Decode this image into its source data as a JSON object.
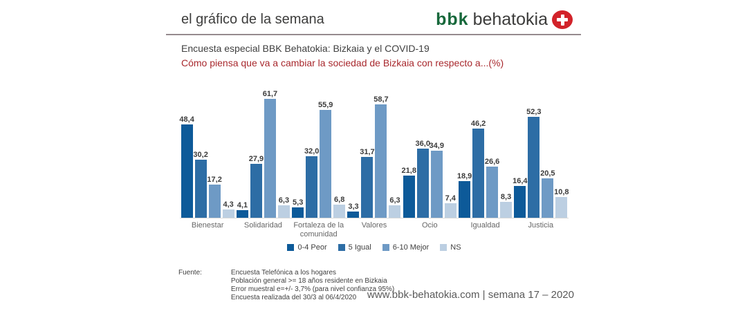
{
  "header": {
    "title": "el gráfico de la semana",
    "logo_bbk": "bbk",
    "logo_behatokia": "behatokia",
    "brand_green": "#17683b",
    "brand_red": "#d2232a"
  },
  "titles": {
    "main": "Encuesta especial BBK Behatokia: Bizkaia y el COVID-19",
    "subtitle": "Cómo piensa que va a cambiar la sociedad de Bizkaia con respecto a...(%)",
    "subtitle_color": "#a8282d"
  },
  "chart_data": {
    "type": "bar",
    "title": "Cómo piensa que va a cambiar la sociedad de Bizkaia con respecto a...(%)",
    "categories": [
      "Bienestar",
      "Solidaridad",
      "Fortaleza de la comunidad",
      "Valores",
      "Ocio",
      "Igualdad",
      "Justicia"
    ],
    "series": [
      {
        "name": "0-4 Peor",
        "color": "#0d5a99",
        "values": [
          48.4,
          4.1,
          5.3,
          3.3,
          21.8,
          18.9,
          16.4
        ],
        "labels": [
          "48,4",
          "4,1",
          "5,3",
          "3,3",
          "21,8",
          "18,9",
          "16,4"
        ]
      },
      {
        "name": "5 Igual",
        "color": "#2d6da5",
        "values": [
          30.2,
          27.9,
          32.0,
          31.7,
          36.0,
          46.2,
          52.3
        ],
        "labels": [
          "30,2",
          "27,9",
          "32,0",
          "31,7",
          "36,0",
          "46,2",
          "52,3"
        ]
      },
      {
        "name": "6-10 Mejor",
        "color": "#6e9ac5",
        "values": [
          17.2,
          61.7,
          55.9,
          58.7,
          34.9,
          26.6,
          20.5
        ],
        "labels": [
          "17,2",
          "61,7",
          "55,9",
          "58,7",
          "34,9",
          "26,6",
          "20,5"
        ]
      },
      {
        "name": "NS",
        "color": "#bccfe2",
        "values": [
          4.3,
          6.3,
          6.8,
          6.3,
          7.4,
          8.3,
          10.8
        ],
        "labels": [
          "4,3",
          "6,3",
          "6,8",
          "6,3",
          "7,4",
          "8,3",
          "10,8"
        ]
      }
    ],
    "ylim": [
      0,
      65
    ],
    "grid": false,
    "legend_position": "bottom",
    "value_labels_shown": true
  },
  "footer": {
    "source_label": "Fuente:",
    "source_lines": [
      "Encuesta Telefónica a los hogares",
      "Población general >= 18 años residente en Bizkaia",
      "Error muestral e=+/- 3,7% (para nivel confianza 95%)",
      "Encuesta realizada del 30/3 al 06/4/2020"
    ],
    "website": "www.bbk-behatokia.com | semana 17 – 2020"
  }
}
